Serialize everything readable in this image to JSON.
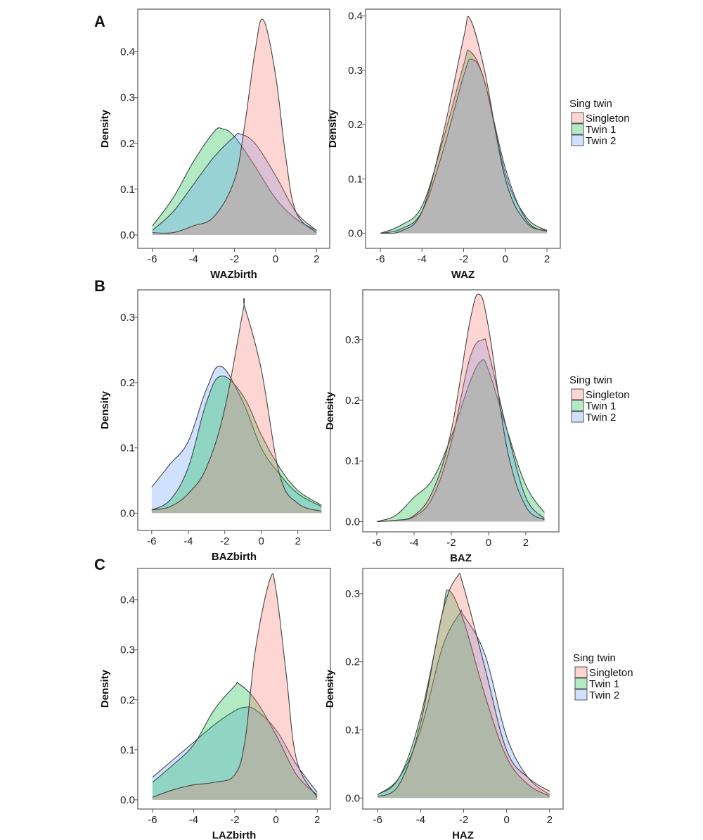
{
  "row_labels": [
    "A",
    "B",
    "C"
  ],
  "legend": {
    "title": "Sing twin",
    "items": [
      {
        "label": "Singleton",
        "color": "#f8766d"
      },
      {
        "label": "Twin 1",
        "color": "#00ba38"
      },
      {
        "label": "Twin 2",
        "color": "#619cff"
      }
    ]
  },
  "chart_data": [
    {
      "type": "area",
      "panel": "A-left",
      "xlabel": "WAZbirth",
      "ylabel": "Density",
      "xlim": [
        -6.3,
        2.3
      ],
      "ylim": [
        -0.02,
        0.49
      ],
      "xticks": [
        -6,
        -4,
        -2,
        0,
        2
      ],
      "yticks": [
        0.0,
        0.1,
        0.2,
        0.3,
        0.4
      ],
      "series": [
        {
          "name": "Twin 1",
          "x": [
            -6,
            -5,
            -4,
            -3,
            -2.6,
            -2,
            -1,
            0,
            1,
            2
          ],
          "y": [
            0.02,
            0.08,
            0.16,
            0.225,
            0.232,
            0.215,
            0.15,
            0.08,
            0.035,
            0.01
          ]
        },
        {
          "name": "Twin 2",
          "x": [
            -6,
            -5,
            -4,
            -3,
            -2,
            -1.7,
            -1,
            0,
            1,
            2
          ],
          "y": [
            0.01,
            0.05,
            0.11,
            0.17,
            0.215,
            0.22,
            0.2,
            0.13,
            0.05,
            0.01
          ]
        },
        {
          "name": "Singleton",
          "x": [
            -6,
            -5,
            -4,
            -3,
            -2,
            -1.5,
            -1,
            -0.6,
            0,
            0.5,
            1,
            2
          ],
          "y": [
            0.005,
            0.005,
            0.02,
            0.04,
            0.12,
            0.24,
            0.4,
            0.47,
            0.35,
            0.17,
            0.05,
            0.005
          ]
        }
      ]
    },
    {
      "type": "area",
      "panel": "A-right",
      "xlabel": "WAZ",
      "ylabel": "Density",
      "xlim": [
        -6.3,
        2.3
      ],
      "ylim": [
        -0.02,
        0.41
      ],
      "xticks": [
        -6,
        -4,
        -2,
        0,
        2
      ],
      "yticks": [
        0.0,
        0.1,
        0.2,
        0.3,
        0.4
      ],
      "series": [
        {
          "name": "Twin 1",
          "x": [
            -6,
            -5,
            -4,
            -3,
            -2,
            -1.7,
            -1,
            0,
            1,
            2
          ],
          "y": [
            0.0,
            0.015,
            0.05,
            0.17,
            0.31,
            0.335,
            0.28,
            0.11,
            0.03,
            0.005
          ]
        },
        {
          "name": "Twin 2",
          "x": [
            -6,
            -5,
            -4,
            -3,
            -2,
            -1.6,
            -1,
            0,
            1,
            2
          ],
          "y": [
            0.0,
            0.008,
            0.04,
            0.15,
            0.29,
            0.32,
            0.28,
            0.12,
            0.025,
            0.003
          ]
        },
        {
          "name": "Singleton",
          "x": [
            -6,
            -5,
            -4,
            -3,
            -2,
            -1.7,
            -1,
            0,
            1,
            2
          ],
          "y": [
            0.0,
            0.004,
            0.04,
            0.18,
            0.36,
            0.395,
            0.3,
            0.1,
            0.02,
            0.005
          ]
        }
      ]
    },
    {
      "type": "area",
      "panel": "B-left",
      "xlabel": "BAZbirth",
      "ylabel": "Density",
      "xlim": [
        -6.3,
        3.4
      ],
      "ylim": [
        -0.02,
        0.34
      ],
      "xticks": [
        -6,
        -4,
        -2,
        0,
        2
      ],
      "yticks": [
        0.0,
        0.1,
        0.2,
        0.3
      ],
      "series": [
        {
          "name": "Twin 2",
          "x": [
            -6,
            -5,
            -4,
            -3,
            -2.2,
            -1,
            0,
            1,
            2,
            3.3
          ],
          "y": [
            0.04,
            0.075,
            0.11,
            0.19,
            0.225,
            0.17,
            0.1,
            0.06,
            0.03,
            0.01
          ]
        },
        {
          "name": "Twin 1",
          "x": [
            -6,
            -5,
            -4,
            -3,
            -2.2,
            -1,
            0,
            1,
            2,
            3.3
          ],
          "y": [
            0.005,
            0.02,
            0.07,
            0.17,
            0.21,
            0.18,
            0.12,
            0.07,
            0.035,
            0.012
          ]
        },
        {
          "name": "Singleton",
          "x": [
            -6,
            -5,
            -4,
            -3,
            -2,
            -1,
            -0.9,
            0,
            1,
            2,
            3.3
          ],
          "y": [
            0.005,
            0.01,
            0.03,
            0.07,
            0.16,
            0.31,
            0.315,
            0.22,
            0.06,
            0.015,
            0.003
          ]
        }
      ]
    },
    {
      "type": "area",
      "panel": "B-right",
      "xlabel": "BAZ",
      "ylabel": "Density",
      "xlim": [
        -6.3,
        3.4
      ],
      "ylim": [
        -0.01,
        0.38
      ],
      "xticks": [
        -6,
        -4,
        -2,
        0,
        2
      ],
      "yticks": [
        0.0,
        0.1,
        0.2,
        0.3
      ],
      "series": [
        {
          "name": "Twin 1",
          "x": [
            -6,
            -5,
            -4,
            -3,
            -2,
            -1,
            -0.4,
            0,
            1,
            2,
            3
          ],
          "y": [
            0.0,
            0.01,
            0.04,
            0.07,
            0.14,
            0.23,
            0.265,
            0.25,
            0.15,
            0.06,
            0.015
          ]
        },
        {
          "name": "Twin 2",
          "x": [
            -6,
            -5,
            -4,
            -3,
            -2,
            -1,
            -0.3,
            0,
            1,
            2,
            3
          ],
          "y": [
            0.0,
            0.002,
            0.008,
            0.04,
            0.13,
            0.27,
            0.3,
            0.28,
            0.15,
            0.04,
            0.005
          ]
        },
        {
          "name": "Singleton",
          "x": [
            -6,
            -5,
            -4,
            -3,
            -2,
            -1,
            -0.5,
            0,
            1,
            2,
            3
          ],
          "y": [
            0.0,
            0.002,
            0.01,
            0.05,
            0.15,
            0.33,
            0.375,
            0.32,
            0.12,
            0.025,
            0.003
          ]
        }
      ]
    },
    {
      "type": "area",
      "panel": "C-left",
      "xlabel": "LAZbirth",
      "ylabel": "Density",
      "xlim": [
        -6.3,
        2.3
      ],
      "ylim": [
        -0.01,
        0.46
      ],
      "xticks": [
        -6,
        -4,
        -2,
        0,
        2
      ],
      "yticks": [
        0.0,
        0.1,
        0.2,
        0.3,
        0.4
      ],
      "series": [
        {
          "name": "Twin 2",
          "x": [
            -6,
            -5,
            -4,
            -3,
            -2,
            -1.5,
            -1,
            0,
            1,
            2
          ],
          "y": [
            0.045,
            0.08,
            0.115,
            0.15,
            0.178,
            0.185,
            0.18,
            0.14,
            0.07,
            0.015
          ]
        },
        {
          "name": "Twin 1",
          "x": [
            -6,
            -5,
            -4,
            -3,
            -2,
            -1.8,
            -1,
            0,
            1,
            2
          ],
          "y": [
            0.035,
            0.07,
            0.11,
            0.18,
            0.228,
            0.232,
            0.2,
            0.13,
            0.05,
            0.01
          ]
        },
        {
          "name": "Singleton",
          "x": [
            -6,
            -5,
            -4,
            -3,
            -2,
            -1.5,
            -1,
            -0.3,
            0,
            0.5,
            1,
            2
          ],
          "y": [
            0.005,
            0.02,
            0.03,
            0.035,
            0.05,
            0.12,
            0.3,
            0.44,
            0.42,
            0.25,
            0.08,
            0.005
          ]
        }
      ]
    },
    {
      "type": "area",
      "panel": "C-right",
      "xlabel": "HAZ",
      "ylabel": "Density",
      "xlim": [
        -6.3,
        2.3
      ],
      "ylim": [
        -0.01,
        0.335
      ],
      "xticks": [
        -6,
        -4,
        -2,
        0,
        2
      ],
      "yticks": [
        0.0,
        0.1,
        0.2,
        0.3
      ],
      "series": [
        {
          "name": "Twin 2",
          "x": [
            -6,
            -5,
            -4,
            -3,
            -2.2,
            -2,
            -1,
            0,
            1,
            2
          ],
          "y": [
            0.005,
            0.03,
            0.1,
            0.22,
            0.27,
            0.268,
            0.21,
            0.09,
            0.03,
            0.005
          ]
        },
        {
          "name": "Twin 1",
          "x": [
            -6,
            -5,
            -4,
            -3,
            -2.7,
            -2,
            -1,
            0,
            1,
            2
          ],
          "y": [
            0.005,
            0.03,
            0.12,
            0.27,
            0.305,
            0.26,
            0.15,
            0.06,
            0.02,
            0.003
          ]
        },
        {
          "name": "Singleton",
          "x": [
            -6,
            -5,
            -4,
            -3,
            -2.3,
            -2,
            -1,
            0,
            1,
            2
          ],
          "y": [
            0.002,
            0.02,
            0.11,
            0.27,
            0.325,
            0.31,
            0.19,
            0.07,
            0.03,
            0.01
          ]
        }
      ]
    }
  ]
}
